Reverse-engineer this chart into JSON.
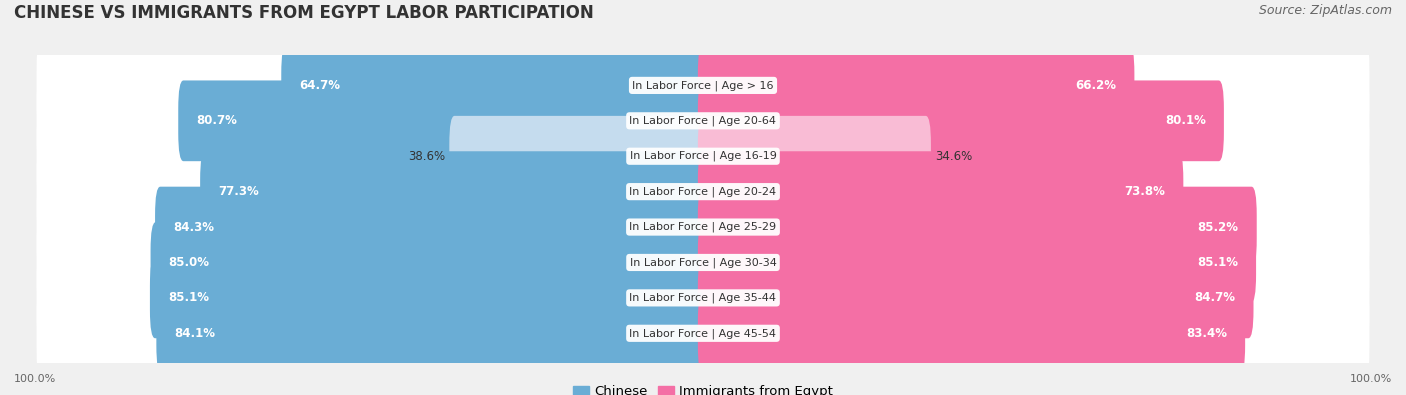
{
  "title": "CHINESE VS IMMIGRANTS FROM EGYPT LABOR PARTICIPATION",
  "source": "Source: ZipAtlas.com",
  "categories": [
    "In Labor Force | Age > 16",
    "In Labor Force | Age 20-64",
    "In Labor Force | Age 16-19",
    "In Labor Force | Age 20-24",
    "In Labor Force | Age 25-29",
    "In Labor Force | Age 30-34",
    "In Labor Force | Age 35-44",
    "In Labor Force | Age 45-54"
  ],
  "chinese_values": [
    64.7,
    80.7,
    38.6,
    77.3,
    84.3,
    85.0,
    85.1,
    84.1
  ],
  "egypt_values": [
    66.2,
    80.1,
    34.6,
    73.8,
    85.2,
    85.1,
    84.7,
    83.4
  ],
  "chinese_color": "#6aadd5",
  "chinese_color_light": "#c5dcee",
  "egypt_color": "#f46fa5",
  "egypt_color_light": "#f9bcd5",
  "bar_height": 0.68,
  "background_color": "#f0f0f0",
  "row_bg_color": "#ffffff",
  "row_bg_shadow": "#e0e0e0",
  "legend_chinese": "Chinese",
  "legend_egypt": "Immigrants from Egypt",
  "max_val": 100.0,
  "title_fontsize": 12,
  "source_fontsize": 9,
  "label_fontsize": 8.5,
  "value_fontsize": 8.5,
  "cat_fontsize": 8,
  "small_threshold": 50
}
